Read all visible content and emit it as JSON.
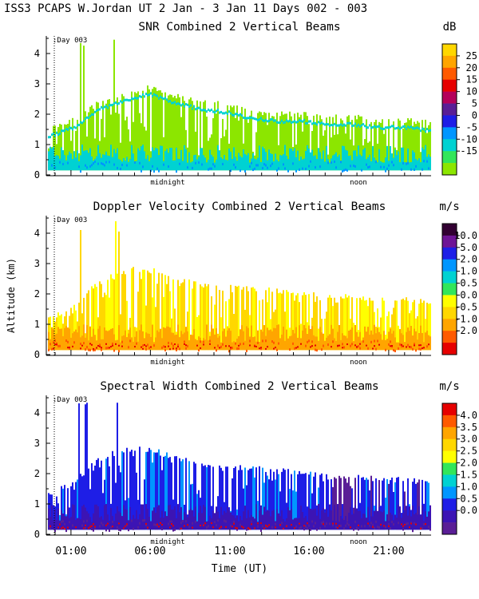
{
  "header": "ISS3 PCAPS W.Jordan UT   2 Jan -  3 Jan 11 Days 002 - 003",
  "ylabel": "Altitude (km)",
  "xlabel": "Time (UT)",
  "time_tick_labels": [
    "01:00",
    "06:00",
    "11:00",
    "16:00",
    "21:00"
  ],
  "day_marker": ":Day 003",
  "panel_markers": [
    "midnight",
    "noon"
  ],
  "chart_data": [
    {
      "type": "heatmap",
      "title": "SNR Combined 2 Vertical Beams",
      "xlabel": "Time (UT)",
      "ylabel": "Altitude (km)",
      "x_range_hours_utc": [
        23.5,
        24.0
      ],
      "ylim": [
        0,
        4.6
      ],
      "y_ticks": [
        0,
        1,
        2,
        3,
        4
      ],
      "colorbar": {
        "unit": "dB",
        "labels": [
          "25",
          "20",
          "15",
          "10",
          "5",
          "0",
          "-5",
          "-10",
          "-15"
        ],
        "colors": [
          "#ffd700",
          "#ffa500",
          "#ff5a00",
          "#e60000",
          "#b4005a",
          "#5a1e96",
          "#1e1ee6",
          "#0096ff",
          "#00d2d2",
          "#32e65a",
          "#8ce600"
        ]
      },
      "top_envelope_km": [
        1.5,
        1.8,
        2.4,
        2.7,
        2.9,
        2.6,
        2.4,
        2.3,
        2.1,
        2.0,
        2.0,
        1.9,
        1.9,
        1.8,
        1.8,
        1.7
      ]
    },
    {
      "type": "heatmap",
      "title": "Doppler Velocity Combined 2 Vertical Beams",
      "xlabel": "Time (UT)",
      "ylabel": "Altitude (km)",
      "ylim": [
        0,
        4.6
      ],
      "y_ticks": [
        0,
        1,
        2,
        3,
        4
      ],
      "colorbar": {
        "unit": "m/s",
        "labels": [
          "10.0",
          "5.0",
          "2.0",
          "1.0",
          "0.5",
          "0.0",
          "-0.5",
          "-1.0",
          "-2.0"
        ],
        "colors": [
          "#320032",
          "#6e1496",
          "#1e1ee6",
          "#0096ff",
          "#00d2d2",
          "#32e65a",
          "#ffff00",
          "#ffd700",
          "#ffa500",
          "#ff5a00",
          "#e60000"
        ]
      },
      "top_envelope_km": [
        1.2,
        1.6,
        2.4,
        2.8,
        2.8,
        2.5,
        2.3,
        2.2,
        2.2,
        2.1,
        2.0,
        1.9,
        1.9,
        1.8,
        1.8,
        1.7
      ]
    },
    {
      "type": "heatmap",
      "title": "Spectral Width Combined 2 Vertical Beams",
      "xlabel": "Time (UT)",
      "ylabel": "Altitude (km)",
      "ylim": [
        0,
        4.6
      ],
      "y_ticks": [
        0,
        1,
        2,
        3,
        4
      ],
      "colorbar": {
        "unit": "m/s",
        "labels": [
          "4.0",
          "3.5",
          "3.0",
          "2.5",
          "2.0",
          "1.5",
          "1.0",
          "0.5",
          "0.0"
        ],
        "colors": [
          "#e60000",
          "#ff5a00",
          "#ffa500",
          "#ffd700",
          "#ffff00",
          "#32e65a",
          "#00d2d2",
          "#0096ff",
          "#1e1ee6",
          "#3c14b4",
          "#5a1e96"
        ]
      },
      "top_envelope_km": [
        1.3,
        1.7,
        2.5,
        2.8,
        2.8,
        2.5,
        2.3,
        2.2,
        2.2,
        2.1,
        2.0,
        1.9,
        1.9,
        1.8,
        1.8,
        1.7
      ]
    }
  ]
}
